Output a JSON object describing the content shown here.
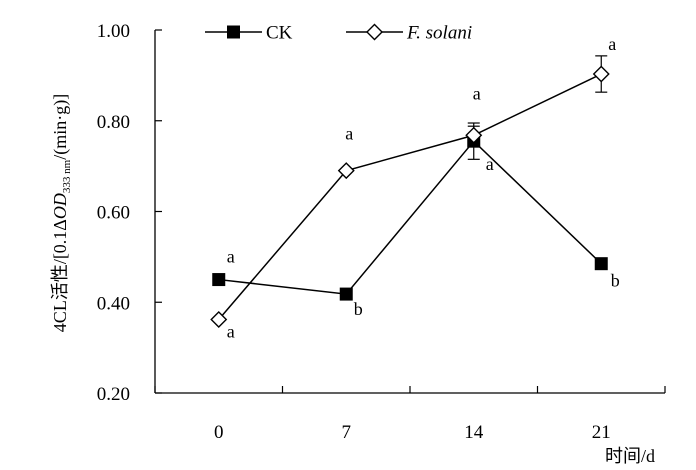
{
  "chart_data": {
    "type": "line",
    "title": "",
    "xlabel": "时间/d",
    "ylabel": {
      "prefix": "4CL活性/[0.1Δ",
      "od": "OD",
      "sub": "333 nm",
      "suffix": "/(min·g)]"
    },
    "x": [
      0,
      7,
      14,
      21
    ],
    "x_tick_labels": [
      "0",
      "7",
      "14",
      "21"
    ],
    "xlim": [
      -3.5,
      24.5
    ],
    "ylim": [
      0.2,
      1.0
    ],
    "y_ticks": [
      0.2,
      0.4,
      0.6,
      0.8,
      1.0
    ],
    "y_tick_labels": [
      "0.20",
      "0.40",
      "0.60",
      "0.80",
      "1.00"
    ],
    "grid": false,
    "legend_position": "top",
    "series": [
      {
        "name": "CK",
        "italic": false,
        "marker": "filled-square",
        "values": [
          0.45,
          0.418,
          0.755,
          0.485
        ],
        "errors": [
          0.0,
          0.0,
          0.04,
          0.0
        ],
        "annotations": [
          "a",
          "b",
          "a",
          "b"
        ]
      },
      {
        "name": "F. solani",
        "italic": true,
        "marker": "open-diamond",
        "values": [
          0.362,
          0.69,
          0.768,
          0.903
        ],
        "errors": [
          0.0,
          0.0,
          0.02,
          0.04
        ],
        "annotations": [
          "a",
          "a",
          "a",
          "a"
        ]
      }
    ],
    "colors": {
      "line": "#000000",
      "marker_fill": "#000000",
      "background": "#ffffff"
    }
  }
}
